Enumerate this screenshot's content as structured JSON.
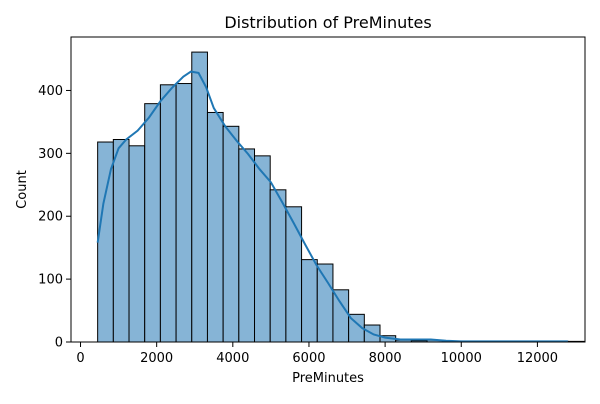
{
  "chart_data": {
    "type": "bar",
    "title": "Distribution of PreMinutes",
    "xlabel": "PreMinutes",
    "ylabel": "Count",
    "xlim": [
      -250,
      13250
    ],
    "ylim": [
      0,
      485
    ],
    "x_ticks": [
      0,
      2000,
      4000,
      6000,
      8000,
      10000,
      12000
    ],
    "x_tick_labels": [
      "0",
      "2000",
      "4000",
      "6000",
      "8000",
      "10000",
      "12000"
    ],
    "y_ticks": [
      0,
      100,
      200,
      300,
      400
    ],
    "y_tick_labels": [
      "0",
      "100",
      "200",
      "300",
      "400"
    ],
    "bin_start": 450,
    "bin_width": 412,
    "counts": [
      318,
      322,
      312,
      379,
      409,
      411,
      461,
      365,
      343,
      307,
      296,
      242,
      215,
      131,
      124,
      83,
      44,
      27,
      10,
      3,
      2,
      3,
      0,
      0,
      0,
      1,
      0,
      0,
      0,
      1,
      1
    ],
    "kde": {
      "x": [
        450,
        600,
        800,
        1000,
        1200,
        1500,
        1800,
        2100,
        2400,
        2700,
        2900,
        3100,
        3300,
        3500,
        3800,
        4100,
        4400,
        4700,
        5000,
        5300,
        5600,
        5900,
        6200,
        6500,
        6800,
        7100,
        7400,
        7700,
        8000,
        8400,
        8800,
        9200,
        9600,
        10000,
        10500,
        11000,
        11500,
        12000,
        12500,
        12800
      ],
      "y": [
        158,
        220,
        275,
        308,
        322,
        336,
        357,
        383,
        404,
        422,
        430,
        428,
        405,
        372,
        343,
        320,
        299,
        275,
        254,
        222,
        189,
        155,
        122,
        94,
        65,
        38,
        22,
        12,
        7,
        4,
        4,
        4,
        2,
        1,
        1,
        1,
        1,
        1,
        1,
        1
      ]
    },
    "bar_color": "#86b4d6",
    "bar_edge_color": "#000000",
    "line_color": "#1f77b4",
    "grid": false
  }
}
